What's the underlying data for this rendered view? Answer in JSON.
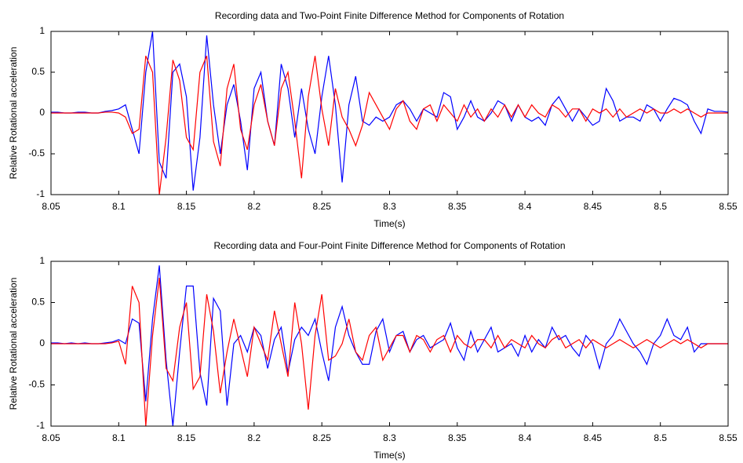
{
  "chart_data": [
    {
      "type": "line",
      "title": "Recording data and Two-Point Finite Difference Method for Components of Rotation",
      "xlabel": "Time(s)",
      "ylabel": "Relative Rotational acceleration",
      "xlim": [
        8.05,
        8.55
      ],
      "ylim": [
        -1,
        1
      ],
      "xticks": [
        8.05,
        8.1,
        8.15,
        8.2,
        8.25,
        8.3,
        8.35,
        8.4,
        8.45,
        8.5,
        8.55
      ],
      "yticks": [
        -1,
        -0.5,
        0,
        0.5,
        1
      ],
      "grid": false,
      "x": [
        8.05,
        8.055,
        8.06,
        8.065,
        8.07,
        8.075,
        8.08,
        8.085,
        8.09,
        8.095,
        8.1,
        8.105,
        8.11,
        8.115,
        8.12,
        8.125,
        8.13,
        8.135,
        8.14,
        8.145,
        8.15,
        8.155,
        8.16,
        8.165,
        8.17,
        8.175,
        8.18,
        8.185,
        8.19,
        8.195,
        8.2,
        8.205,
        8.21,
        8.215,
        8.22,
        8.225,
        8.23,
        8.235,
        8.24,
        8.245,
        8.25,
        8.255,
        8.26,
        8.265,
        8.27,
        8.275,
        8.28,
        8.285,
        8.29,
        8.295,
        8.3,
        8.305,
        8.31,
        8.315,
        8.32,
        8.325,
        8.33,
        8.335,
        8.34,
        8.345,
        8.35,
        8.355,
        8.36,
        8.365,
        8.37,
        8.375,
        8.38,
        8.385,
        8.39,
        8.395,
        8.4,
        8.405,
        8.41,
        8.415,
        8.42,
        8.425,
        8.43,
        8.435,
        8.44,
        8.445,
        8.45,
        8.455,
        8.46,
        8.465,
        8.47,
        8.475,
        8.48,
        8.485,
        8.49,
        8.495,
        8.5,
        8.505,
        8.51,
        8.515,
        8.52,
        8.525,
        8.53,
        8.535,
        8.54,
        8.545,
        8.55
      ],
      "series": [
        {
          "color": "#0000ff",
          "values": [
            0.01,
            0.01,
            0,
            0,
            0.01,
            0.01,
            0,
            0,
            0.02,
            0.03,
            0.05,
            0.1,
            -0.2,
            -0.5,
            0.5,
            1,
            -0.6,
            -0.8,
            0.5,
            0.6,
            0.2,
            -0.95,
            -0.3,
            0.95,
            0.1,
            -0.5,
            0.1,
            0.35,
            -0.1,
            -0.7,
            0.3,
            0.5,
            -0.1,
            -0.4,
            0.6,
            0.3,
            -0.3,
            0.3,
            -0.2,
            -0.5,
            0.2,
            0.7,
            0.1,
            -0.85,
            0.1,
            0.45,
            -0.1,
            -0.15,
            -0.05,
            -0.1,
            -0.05,
            0.1,
            0.15,
            0.05,
            -0.1,
            0.05,
            0,
            -0.05,
            0.25,
            0.2,
            -0.2,
            -0.05,
            0.15,
            -0.05,
            -0.1,
            0,
            0.15,
            0.1,
            -0.1,
            0.1,
            -0.05,
            -0.1,
            -0.05,
            -0.15,
            0.1,
            0.2,
            0.05,
            -0.1,
            0.05,
            -0.05,
            -0.15,
            -0.1,
            0.3,
            0.15,
            -0.1,
            -0.05,
            -0.05,
            -0.1,
            0.1,
            0.05,
            -0.1,
            0.05,
            0.18,
            0.15,
            0.1,
            -0.1,
            -0.25,
            0.05,
            0.02,
            0.02,
            0.01
          ]
        },
        {
          "color": "#ff0000",
          "values": [
            0,
            0,
            0,
            0,
            0,
            0,
            0,
            0,
            0.01,
            0.01,
            0,
            -0.05,
            -0.25,
            -0.2,
            0.7,
            0.5,
            -1,
            -0.3,
            0.65,
            0.4,
            -0.3,
            -0.45,
            0.5,
            0.7,
            -0.35,
            -0.65,
            0.3,
            0.6,
            -0.2,
            -0.45,
            0.1,
            0.35,
            -0.1,
            -0.4,
            0.3,
            0.5,
            -0.1,
            -0.8,
            0.2,
            0.7,
            0.05,
            -0.4,
            0.3,
            -0.05,
            -0.2,
            -0.4,
            -0.15,
            0.25,
            0.1,
            -0.05,
            -0.2,
            0.05,
            0.15,
            -0.1,
            -0.2,
            0.05,
            0.1,
            -0.1,
            0.1,
            0,
            -0.1,
            0.1,
            -0.05,
            0.05,
            -0.1,
            0.05,
            -0.05,
            0.1,
            -0.05,
            0.1,
            -0.05,
            0.1,
            0,
            -0.05,
            0.1,
            0.05,
            -0.05,
            0.05,
            0.05,
            -0.1,
            0.05,
            0,
            0.05,
            -0.05,
            0.05,
            -0.05,
            0,
            0.05,
            0,
            0.05,
            0,
            0,
            0.05,
            0,
            0.05,
            0,
            -0.05,
            0,
            0,
            0,
            0
          ]
        }
      ]
    },
    {
      "type": "line",
      "title": "Recording data and Four-Point Finite Difference Method for Components of Rotation",
      "xlabel": "Time(s)",
      "ylabel": "Relative Rotational acceleration",
      "xlim": [
        8.05,
        8.55
      ],
      "ylim": [
        -1,
        1
      ],
      "xticks": [
        8.05,
        8.1,
        8.15,
        8.2,
        8.25,
        8.3,
        8.35,
        8.4,
        8.45,
        8.5,
        8.55
      ],
      "yticks": [
        -1,
        -0.5,
        0,
        0.5,
        1
      ],
      "grid": false,
      "x": [
        8.05,
        8.055,
        8.06,
        8.065,
        8.07,
        8.075,
        8.08,
        8.085,
        8.09,
        8.095,
        8.1,
        8.105,
        8.11,
        8.115,
        8.12,
        8.125,
        8.13,
        8.135,
        8.14,
        8.145,
        8.15,
        8.155,
        8.16,
        8.165,
        8.17,
        8.175,
        8.18,
        8.185,
        8.19,
        8.195,
        8.2,
        8.205,
        8.21,
        8.215,
        8.22,
        8.225,
        8.23,
        8.235,
        8.24,
        8.245,
        8.25,
        8.255,
        8.26,
        8.265,
        8.27,
        8.275,
        8.28,
        8.285,
        8.29,
        8.295,
        8.3,
        8.305,
        8.31,
        8.315,
        8.32,
        8.325,
        8.33,
        8.335,
        8.34,
        8.345,
        8.35,
        8.355,
        8.36,
        8.365,
        8.37,
        8.375,
        8.38,
        8.385,
        8.39,
        8.395,
        8.4,
        8.405,
        8.41,
        8.415,
        8.42,
        8.425,
        8.43,
        8.435,
        8.44,
        8.445,
        8.45,
        8.455,
        8.46,
        8.465,
        8.47,
        8.475,
        8.48,
        8.485,
        8.49,
        8.495,
        8.5,
        8.505,
        8.51,
        8.515,
        8.52,
        8.525,
        8.53,
        8.535,
        8.54,
        8.545,
        8.55
      ],
      "series": [
        {
          "color": "#0000ff",
          "values": [
            0.01,
            0.01,
            0,
            0.01,
            0,
            0.01,
            0,
            0,
            0.01,
            0.02,
            0.05,
            0,
            0.3,
            0.25,
            -0.7,
            0.3,
            0.95,
            -0.2,
            -1,
            -0.1,
            0.7,
            0.7,
            -0.35,
            -0.75,
            0.55,
            0.4,
            -0.75,
            0,
            0.1,
            -0.1,
            0.2,
            0.1,
            -0.3,
            0.05,
            0.2,
            -0.35,
            0.05,
            0.2,
            0.1,
            0.3,
            -0.1,
            -0.45,
            0.2,
            0.45,
            0.1,
            -0.1,
            -0.25,
            -0.25,
            0.15,
            0.3,
            -0.1,
            0.1,
            0.15,
            -0.1,
            0.05,
            0.1,
            -0.05,
            0,
            0.05,
            0.25,
            -0.05,
            -0.2,
            0.15,
            -0.1,
            0.05,
            0.2,
            -0.1,
            -0.05,
            0,
            -0.15,
            0.1,
            -0.1,
            0.05,
            -0.05,
            0.2,
            0.05,
            0.1,
            -0.05,
            -0.15,
            0.1,
            0,
            -0.3,
            0,
            0.1,
            0.3,
            0.15,
            0,
            -0.1,
            -0.25,
            0,
            0.1,
            0.3,
            0.1,
            0.05,
            0.2,
            -0.1,
            0,
            0,
            0,
            0,
            0
          ]
        },
        {
          "color": "#ff0000",
          "values": [
            0,
            0,
            0,
            0,
            0,
            0,
            0,
            0,
            0,
            0.01,
            0.03,
            -0.25,
            0.7,
            0.5,
            -1,
            0.1,
            0.8,
            -0.3,
            -0.45,
            0.2,
            0.5,
            -0.55,
            -0.4,
            0.6,
            0.15,
            -0.6,
            -0.1,
            0.3,
            -0.05,
            -0.4,
            0.2,
            0,
            -0.2,
            0.4,
            0,
            -0.4,
            0.5,
            0,
            -0.8,
            0.1,
            0.6,
            -0.2,
            -0.15,
            0,
            0.3,
            -0.1,
            -0.2,
            0.1,
            0.2,
            -0.2,
            -0.05,
            0.1,
            0.1,
            -0.1,
            0.1,
            0.05,
            -0.1,
            0.05,
            0.1,
            -0.1,
            0.1,
            0,
            -0.05,
            0.05,
            0.05,
            -0.05,
            0.1,
            -0.05,
            0.05,
            0,
            -0.05,
            0.1,
            0,
            -0.05,
            0.05,
            0.1,
            -0.05,
            0,
            0.05,
            -0.05,
            0.05,
            0,
            -0.05,
            0,
            0.05,
            0,
            -0.05,
            0,
            0.05,
            0,
            -0.05,
            0,
            0.05,
            0,
            0.05,
            0,
            -0.05,
            0,
            0,
            0,
            0
          ]
        }
      ]
    }
  ]
}
